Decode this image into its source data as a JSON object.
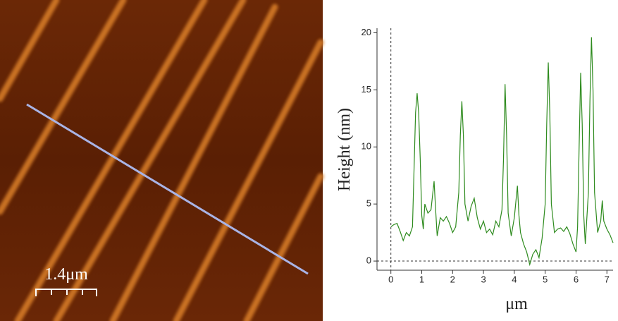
{
  "image": {
    "scale_bar_label": "1.4μm"
  },
  "chart_data": {
    "type": "line",
    "xlabel": "μm",
    "ylabel": "Height (nm)",
    "color": "#2e8b1e",
    "x": [
      0,
      0.1,
      0.2,
      0.3,
      0.4,
      0.5,
      0.6,
      0.7,
      0.75,
      0.8,
      0.85,
      0.9,
      0.95,
      1.0,
      1.05,
      1.1,
      1.2,
      1.3,
      1.4,
      1.45,
      1.5,
      1.6,
      1.7,
      1.8,
      1.9,
      2.0,
      2.1,
      2.2,
      2.25,
      2.3,
      2.35,
      2.4,
      2.5,
      2.6,
      2.7,
      2.8,
      2.9,
      3.0,
      3.1,
      3.2,
      3.3,
      3.4,
      3.5,
      3.6,
      3.65,
      3.7,
      3.75,
      3.8,
      3.9,
      4.0,
      4.1,
      4.15,
      4.2,
      4.3,
      4.4,
      4.5,
      4.6,
      4.7,
      4.8,
      4.9,
      5.0,
      5.05,
      5.1,
      5.15,
      5.2,
      5.3,
      5.4,
      5.5,
      5.6,
      5.7,
      5.8,
      5.9,
      6.0,
      6.05,
      6.1,
      6.15,
      6.2,
      6.25,
      6.3,
      6.4,
      6.45,
      6.5,
      6.55,
      6.6,
      6.7,
      6.8,
      6.85,
      6.9,
      7.0,
      7.1,
      7.2
    ],
    "values": [
      3.0,
      3.2,
      3.3,
      2.6,
      1.8,
      2.5,
      2.2,
      3.0,
      8,
      13,
      14.7,
      13,
      9,
      4,
      2.8,
      5,
      4.2,
      4.5,
      7.0,
      4.5,
      2.2,
      3.8,
      3.5,
      3.9,
      3.3,
      2.5,
      3.0,
      6,
      11,
      14,
      11,
      5,
      3.5,
      4.8,
      5.5,
      3.8,
      2.8,
      3.5,
      2.5,
      2.8,
      2.3,
      3.5,
      3.0,
      4.5,
      9,
      15.5,
      11,
      4.2,
      2.2,
      3.8,
      6.6,
      4,
      2.5,
      1.5,
      0.8,
      -0.3,
      0.6,
      1.0,
      0.3,
      2.0,
      5,
      12,
      17.4,
      13,
      5,
      2.5,
      2.8,
      2.9,
      2.6,
      3.0,
      2.4,
      1.5,
      0.8,
      3,
      10,
      16.5,
      12,
      4,
      1.5,
      6,
      14,
      19.6,
      15,
      6,
      2.5,
      3.5,
      5.3,
      3.5,
      2.8,
      2.3,
      1.6
    ],
    "xlim": [
      -0.45,
      7.2
    ],
    "ylim": [
      -0.8,
      20.4
    ],
    "xticks": [
      0,
      1,
      2,
      3,
      4,
      5,
      6,
      7
    ],
    "yticks": [
      0,
      5,
      10,
      15,
      20
    ],
    "zero_lines": true
  }
}
